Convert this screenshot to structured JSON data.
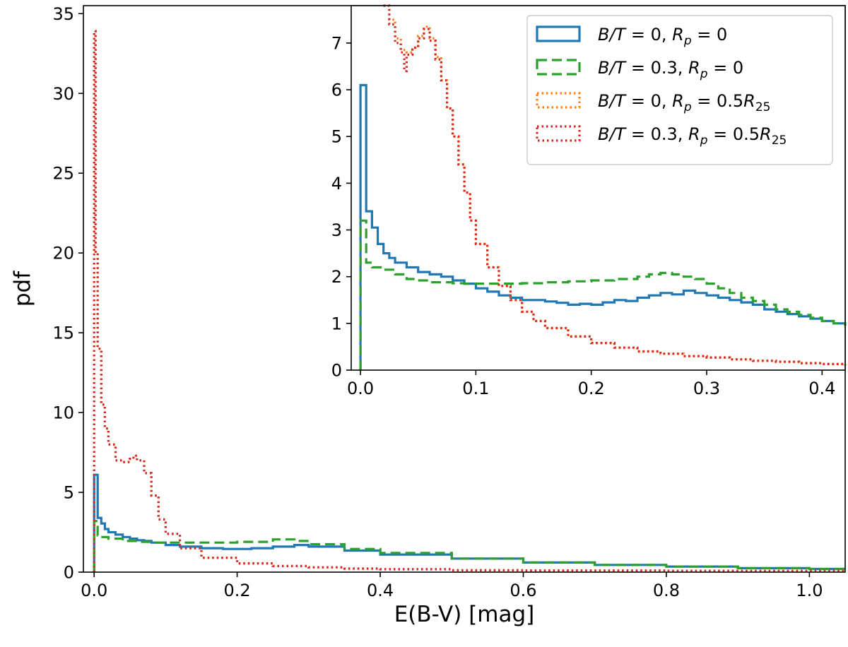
{
  "chart_data": [
    {
      "type": "line",
      "panel": "main",
      "drawstyle": "steps",
      "xlabel": "E(B-V) [mag]",
      "ylabel": "pdf",
      "xlim": [
        -0.015,
        1.05
      ],
      "ylim": [
        0,
        35.5
      ],
      "xticks": [
        "0.0",
        "0.2",
        "0.4",
        "0.6",
        "0.8",
        "1.0"
      ],
      "yticks": [
        "0",
        "5",
        "10",
        "15",
        "20",
        "25",
        "30",
        "35"
      ],
      "grid": false,
      "series": [
        {
          "name": "B/T = 0, R_p = 0",
          "color": "#1f77b4",
          "linestyle": "solid",
          "x": [
            0,
            0.005,
            0.01,
            0.015,
            0.02,
            0.03,
            0.04,
            0.05,
            0.06,
            0.07,
            0.08,
            0.1,
            0.12,
            0.15,
            0.18,
            0.2,
            0.22,
            0.25,
            0.28,
            0.3,
            0.35,
            0.4,
            0.5,
            0.6,
            0.7,
            0.8,
            0.9,
            1.0,
            1.05
          ],
          "y": [
            6.1,
            3.4,
            3.05,
            2.7,
            2.5,
            2.35,
            2.2,
            2.1,
            2.0,
            1.95,
            1.85,
            1.7,
            1.6,
            1.5,
            1.45,
            1.45,
            1.5,
            1.6,
            1.7,
            1.6,
            1.35,
            1.1,
            0.85,
            0.6,
            0.45,
            0.35,
            0.25,
            0.2,
            0.2
          ]
        },
        {
          "name": "B/T = 0.3, R_p = 0",
          "color": "#2ca02c",
          "linestyle": "dashed",
          "x": [
            0,
            0.005,
            0.01,
            0.02,
            0.04,
            0.06,
            0.08,
            0.1,
            0.15,
            0.2,
            0.25,
            0.28,
            0.3,
            0.35,
            0.4,
            0.5,
            0.6,
            0.7,
            0.8,
            0.9,
            1.0,
            1.05
          ],
          "y": [
            3.2,
            2.3,
            2.2,
            2.1,
            1.95,
            1.9,
            1.85,
            1.85,
            1.85,
            1.9,
            2.05,
            1.95,
            1.75,
            1.45,
            1.2,
            0.85,
            0.6,
            0.45,
            0.35,
            0.25,
            0.2,
            0.2
          ]
        },
        {
          "name": "B/T = 0, R_p = 0.5R_25",
          "color": "#ff7f0e",
          "linestyle": "dotted",
          "x": [
            0,
            0.002,
            0.005,
            0.01,
            0.015,
            0.02,
            0.03,
            0.04,
            0.05,
            0.055,
            0.06,
            0.07,
            0.08,
            0.09,
            0.1,
            0.12,
            0.15,
            0.2,
            0.25,
            0.3,
            0.35,
            0.4,
            0.5,
            0.6,
            0.8,
            1.05
          ],
          "y": [
            33.9,
            20.0,
            14.0,
            10.5,
            9.0,
            8.0,
            7.0,
            6.9,
            7.1,
            7.3,
            7.0,
            6.2,
            4.8,
            3.3,
            2.4,
            1.5,
            0.9,
            0.55,
            0.38,
            0.3,
            0.22,
            0.18,
            0.12,
            0.1,
            0.08,
            0.06
          ]
        },
        {
          "name": "B/T = 0.3, R_p = 0.5R_25",
          "color": "#d62728",
          "linestyle": "dotted",
          "x": [
            0,
            0.002,
            0.005,
            0.01,
            0.015,
            0.02,
            0.03,
            0.04,
            0.05,
            0.055,
            0.06,
            0.07,
            0.08,
            0.09,
            0.1,
            0.12,
            0.15,
            0.2,
            0.25,
            0.3,
            0.35,
            0.4,
            0.5,
            0.6,
            0.8,
            1.05
          ],
          "y": [
            33.9,
            20.0,
            14.0,
            10.5,
            9.0,
            8.0,
            7.0,
            6.9,
            7.1,
            7.3,
            7.0,
            6.2,
            4.8,
            3.3,
            2.4,
            1.5,
            0.9,
            0.55,
            0.38,
            0.3,
            0.22,
            0.18,
            0.12,
            0.1,
            0.08,
            0.06
          ]
        }
      ]
    },
    {
      "type": "line",
      "panel": "inset",
      "drawstyle": "steps",
      "xlim": [
        -0.008,
        0.42
      ],
      "ylim": [
        0,
        7.8
      ],
      "xticks": [
        "0.0",
        "0.1",
        "0.2",
        "0.3",
        "0.4"
      ],
      "yticks": [
        "0",
        "1",
        "2",
        "3",
        "4",
        "5",
        "6",
        "7"
      ],
      "legend_position": "top-right",
      "legend": [
        {
          "pre": "B/T",
          "mid": " = 0, ",
          "rp": "R",
          "sub": "p",
          "post": " = 0"
        },
        {
          "pre": "B/T",
          "mid": " = 0.3, ",
          "rp": "R",
          "sub": "p",
          "post": " = 0"
        },
        {
          "pre": "B/T",
          "mid": " = 0, ",
          "rp": "R",
          "sub": "p",
          "post": " = 0.5",
          "r2": "R",
          "sub2": "25"
        },
        {
          "pre": "B/T",
          "mid": " = 0.3, ",
          "rp": "R",
          "sub": "p",
          "post": " = 0.5",
          "r2": "R",
          "sub2": "25"
        }
      ],
      "series": [
        {
          "name": "B/T = 0, R_p = 0",
          "color": "#1f77b4",
          "linestyle": "solid",
          "x": [
            0,
            0.005,
            0.01,
            0.015,
            0.02,
            0.025,
            0.03,
            0.04,
            0.05,
            0.06,
            0.07,
            0.08,
            0.09,
            0.1,
            0.11,
            0.12,
            0.13,
            0.14,
            0.15,
            0.16,
            0.17,
            0.18,
            0.19,
            0.2,
            0.21,
            0.22,
            0.23,
            0.24,
            0.25,
            0.26,
            0.27,
            0.28,
            0.29,
            0.3,
            0.31,
            0.32,
            0.33,
            0.34,
            0.35,
            0.36,
            0.37,
            0.38,
            0.39,
            0.4,
            0.41,
            0.42
          ],
          "y": [
            6.1,
            3.4,
            3.05,
            2.7,
            2.5,
            2.4,
            2.3,
            2.2,
            2.1,
            2.05,
            2.0,
            1.92,
            1.85,
            1.75,
            1.68,
            1.6,
            1.55,
            1.5,
            1.5,
            1.47,
            1.44,
            1.4,
            1.42,
            1.4,
            1.45,
            1.5,
            1.48,
            1.55,
            1.6,
            1.65,
            1.62,
            1.7,
            1.65,
            1.6,
            1.55,
            1.5,
            1.45,
            1.4,
            1.3,
            1.25,
            1.2,
            1.15,
            1.1,
            1.05,
            1.0,
            1.0
          ]
        },
        {
          "name": "B/T = 0.3, R_p = 0",
          "color": "#2ca02c",
          "linestyle": "dashed",
          "x": [
            0,
            0.005,
            0.01,
            0.02,
            0.03,
            0.04,
            0.05,
            0.06,
            0.07,
            0.08,
            0.09,
            0.1,
            0.12,
            0.14,
            0.16,
            0.18,
            0.2,
            0.22,
            0.24,
            0.25,
            0.26,
            0.27,
            0.28,
            0.29,
            0.3,
            0.31,
            0.32,
            0.33,
            0.34,
            0.35,
            0.36,
            0.37,
            0.38,
            0.39,
            0.4,
            0.41,
            0.42
          ],
          "y": [
            3.2,
            2.3,
            2.2,
            2.15,
            2.05,
            1.95,
            1.92,
            1.88,
            1.88,
            1.86,
            1.85,
            1.85,
            1.85,
            1.86,
            1.88,
            1.9,
            1.92,
            1.95,
            2.0,
            2.05,
            2.08,
            2.05,
            2.0,
            1.95,
            1.85,
            1.75,
            1.65,
            1.55,
            1.48,
            1.4,
            1.3,
            1.25,
            1.18,
            1.12,
            1.05,
            1.0,
            0.95
          ]
        },
        {
          "name": "B/T = 0, R_p = 0.5R_25",
          "color": "#ff7f0e",
          "linestyle": "dotted",
          "x": [
            0.02,
            0.025,
            0.03,
            0.035,
            0.04,
            0.045,
            0.05,
            0.055,
            0.06,
            0.065,
            0.07,
            0.075,
            0.08,
            0.085,
            0.09,
            0.095,
            0.1,
            0.11,
            0.12,
            0.13,
            0.14,
            0.15,
            0.16,
            0.18,
            0.2,
            0.22,
            0.24,
            0.26,
            0.28,
            0.3,
            0.32,
            0.34,
            0.36,
            0.38,
            0.4,
            0.42
          ],
          "y": [
            7.8,
            7.5,
            7.1,
            6.85,
            6.8,
            6.9,
            7.15,
            7.35,
            7.1,
            6.7,
            6.2,
            5.6,
            5.0,
            4.4,
            3.8,
            3.2,
            2.7,
            2.2,
            1.8,
            1.5,
            1.25,
            1.05,
            0.9,
            0.72,
            0.58,
            0.48,
            0.4,
            0.35,
            0.3,
            0.27,
            0.23,
            0.2,
            0.18,
            0.15,
            0.13,
            0.1
          ]
        },
        {
          "name": "B/T = 0.3, R_p = 0.5R_25",
          "color": "#d62728",
          "linestyle": "dotted",
          "x": [
            0.02,
            0.025,
            0.03,
            0.035,
            0.038,
            0.04,
            0.045,
            0.05,
            0.055,
            0.06,
            0.065,
            0.07,
            0.075,
            0.08,
            0.085,
            0.09,
            0.095,
            0.1,
            0.11,
            0.12,
            0.13,
            0.14,
            0.15,
            0.16,
            0.18,
            0.2,
            0.22,
            0.24,
            0.26,
            0.28,
            0.3,
            0.32,
            0.34,
            0.36,
            0.38,
            0.4,
            0.42
          ],
          "y": [
            7.8,
            7.4,
            7.0,
            6.8,
            6.4,
            6.75,
            6.9,
            7.1,
            7.3,
            7.05,
            6.65,
            6.2,
            5.6,
            5.0,
            4.4,
            3.8,
            3.2,
            2.7,
            2.2,
            1.8,
            1.5,
            1.25,
            1.05,
            0.9,
            0.72,
            0.58,
            0.48,
            0.4,
            0.35,
            0.3,
            0.27,
            0.23,
            0.2,
            0.18,
            0.15,
            0.13,
            0.1
          ]
        }
      ]
    }
  ]
}
